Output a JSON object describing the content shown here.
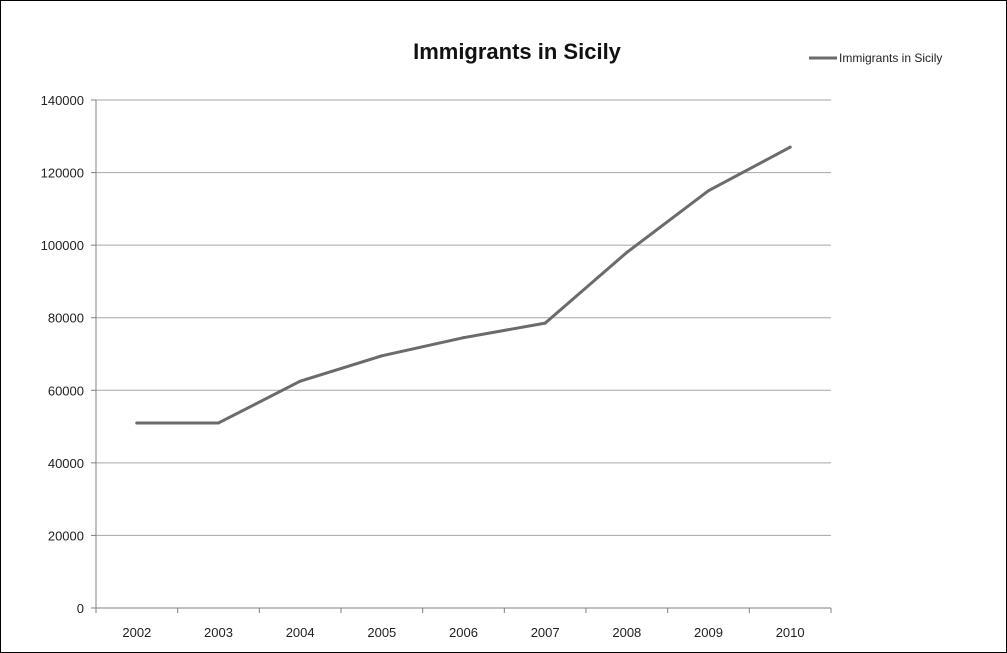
{
  "chart_data": {
    "type": "line",
    "title": "Immigrants in Sicily",
    "xlabel": "",
    "ylabel": "",
    "categories": [
      "2002",
      "2003",
      "2004",
      "2005",
      "2006",
      "2007",
      "2008",
      "2009",
      "2010"
    ],
    "series": [
      {
        "name": "Immigrants in Sicily",
        "values": [
          51000,
          51000,
          62500,
          69500,
          74500,
          78500,
          98000,
          115000,
          127000
        ]
      }
    ],
    "ylim": [
      0,
      140000
    ],
    "yticks": [
      "0",
      "20000",
      "40000",
      "60000",
      "80000",
      "100000",
      "120000",
      "140000"
    ],
    "grid": true,
    "legend": "top-right",
    "colors": {
      "line": "#6b6b6b",
      "grid": "#a6a6a6",
      "axis": "#808080"
    }
  }
}
